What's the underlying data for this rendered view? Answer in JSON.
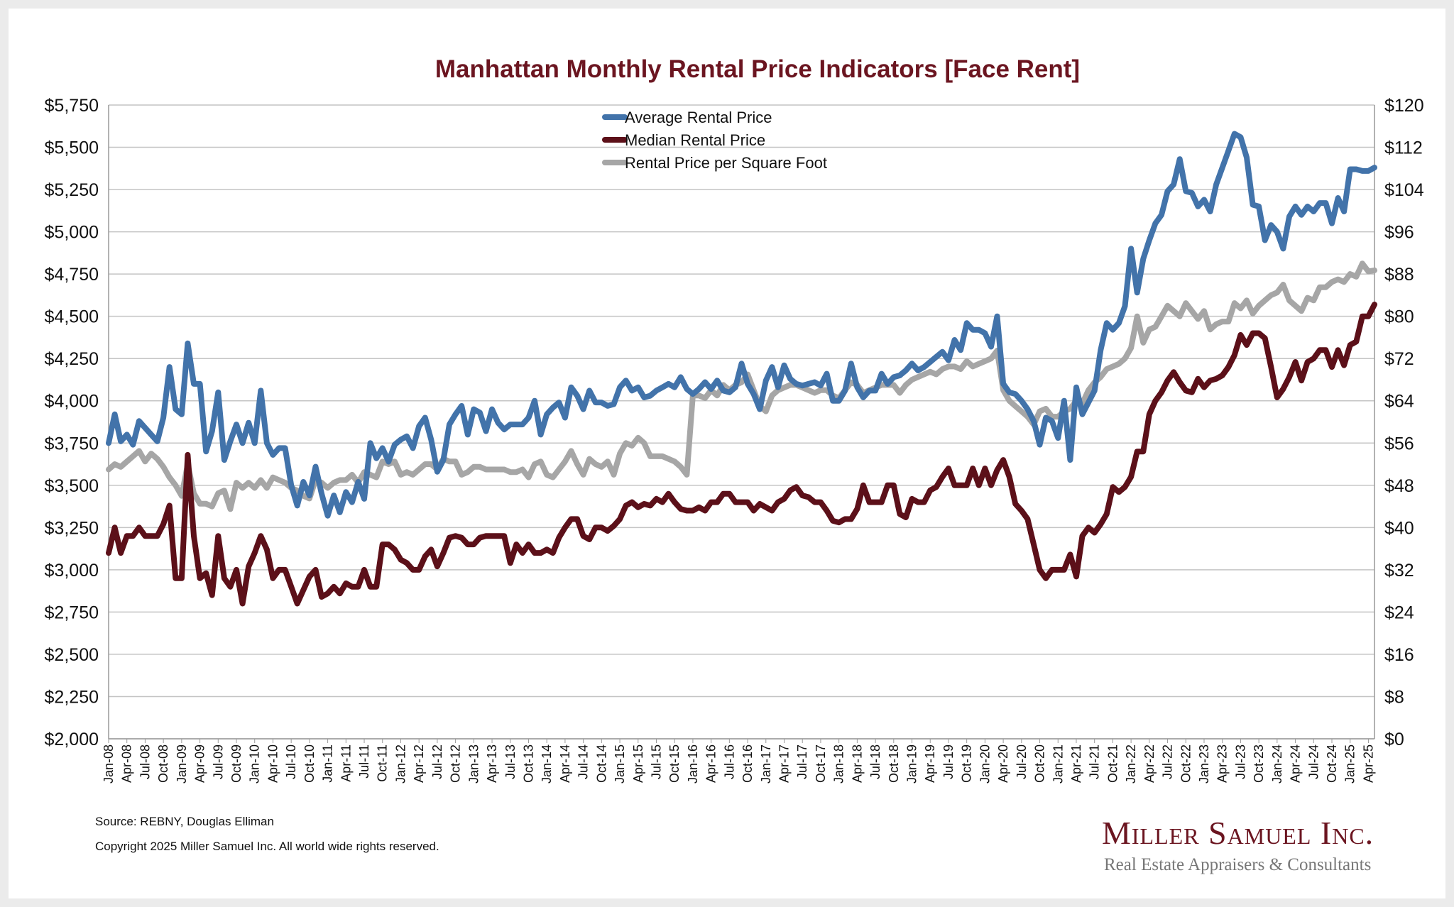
{
  "chart_data": {
    "type": "line",
    "title": "Manhattan Monthly Rental Price Indicators [Face Rent]",
    "x_start": "Jan-08",
    "x_tick_labels": [
      "Jan-08",
      "Apr-08",
      "Jul-08",
      "Oct-08",
      "Jan-09",
      "Apr-09",
      "Jul-09",
      "Oct-09",
      "Jan-10",
      "Apr-10",
      "Jul-10",
      "Oct-10",
      "Jan-11",
      "Apr-11",
      "Jul-11",
      "Oct-11",
      "Jan-12",
      "Apr-12",
      "Jul-12",
      "Oct-12",
      "Jan-13",
      "Apr-13",
      "Jul-13",
      "Oct-13",
      "Jan-14",
      "Apr-14",
      "Jul-14",
      "Oct-14",
      "Jan-15",
      "Apr-15",
      "Jul-15",
      "Oct-15",
      "Jan-16",
      "Apr-16",
      "Jul-16",
      "Oct-16",
      "Jan-17",
      "Apr-17",
      "Jul-17",
      "Oct-17",
      "Jan-18",
      "Apr-18",
      "Jul-18",
      "Oct-18",
      "Jan-19",
      "Apr-19",
      "Jul-19",
      "Oct-19",
      "Jan-20",
      "Apr-20",
      "Jul-20",
      "Oct-20",
      "Jan-21",
      "Apr-21",
      "Jul-21",
      "Oct-21",
      "Jan-22",
      "Apr-22",
      "Jul-22",
      "Oct-22",
      "Jan-23",
      "Apr-23",
      "Jul-23",
      "Oct-23",
      "Jan-24",
      "Apr-24",
      "Jul-24",
      "Oct-24",
      "Jan-25",
      "Apr-25"
    ],
    "y_left": {
      "min": 2000,
      "max": 5750,
      "ticks": [
        "$2,000",
        "$2,250",
        "$2,500",
        "$2,750",
        "$3,000",
        "$3,250",
        "$3,500",
        "$3,750",
        "$4,000",
        "$4,250",
        "$4,500",
        "$4,750",
        "$5,000",
        "$5,250",
        "$5,500",
        "$5,750"
      ]
    },
    "y_right": {
      "min": 0,
      "max": 120,
      "ticks": [
        "$0",
        "$8",
        "$16",
        "$24",
        "$32",
        "$40",
        "$48",
        "$56",
        "$64",
        "$72",
        "$80",
        "$88",
        "$96",
        "$104",
        "$112",
        "$120"
      ]
    },
    "grid": true,
    "legend_position": "top-center",
    "series": [
      {
        "name": "Average Rental Price",
        "axis": "left",
        "color": "#4273aa",
        "values": [
          3750,
          3920,
          3760,
          3800,
          3740,
          3880,
          3840,
          3800,
          3760,
          3900,
          4200,
          3950,
          3920,
          4340,
          4100,
          4100,
          3700,
          3820,
          4050,
          3650,
          3760,
          3860,
          3750,
          3870,
          3750,
          4060,
          3750,
          3680,
          3720,
          3720,
          3500,
          3380,
          3520,
          3440,
          3610,
          3450,
          3320,
          3440,
          3340,
          3460,
          3400,
          3520,
          3420,
          3750,
          3660,
          3720,
          3640,
          3740,
          3770,
          3790,
          3720,
          3850,
          3900,
          3770,
          3580,
          3650,
          3860,
          3920,
          3970,
          3800,
          3950,
          3930,
          3820,
          3950,
          3870,
          3830,
          3860,
          3860,
          3860,
          3900,
          4000,
          3800,
          3920,
          3960,
          3990,
          3900,
          4080,
          4030,
          3950,
          4060,
          3990,
          3990,
          3970,
          3980,
          4080,
          4120,
          4060,
          4080,
          4020,
          4030,
          4060,
          4080,
          4100,
          4080,
          4140,
          4070,
          4040,
          4070,
          4110,
          4070,
          4120,
          4060,
          4050,
          4080,
          4220,
          4100,
          4040,
          3950,
          4120,
          4200,
          4080,
          4210,
          4130,
          4100,
          4090,
          4100,
          4110,
          4090,
          4160,
          4000,
          4000,
          4060,
          4220,
          4080,
          4020,
          4060,
          4060,
          4160,
          4100,
          4140,
          4150,
          4180,
          4220,
          4180,
          4200,
          4230,
          4260,
          4290,
          4240,
          4360,
          4300,
          4460,
          4420,
          4420,
          4400,
          4320,
          4500,
          4100,
          4050,
          4040,
          4000,
          3950,
          3880,
          3740,
          3900,
          3880,
          3780,
          4000,
          3650,
          4080,
          3920,
          3990,
          4060,
          4300,
          4460,
          4420,
          4460,
          4560,
          4900,
          4640,
          4840,
          4950,
          5050,
          5100,
          5240,
          5280,
          5430,
          5240,
          5230,
          5150,
          5190,
          5120,
          5280,
          5380,
          5480,
          5580,
          5560,
          5440,
          5160,
          5150,
          4950,
          5040,
          5000,
          4900,
          5090,
          5150,
          5100,
          5150,
          5120,
          5170,
          5170,
          5050,
          5200,
          5120,
          5370,
          5370,
          5360,
          5360,
          5380
        ]
      },
      {
        "name": "Median Rental Price",
        "axis": "left",
        "color": "#5c1019",
        "values": [
          3100,
          3250,
          3100,
          3200,
          3200,
          3250,
          3200,
          3200,
          3200,
          3270,
          3380,
          2950,
          2950,
          3680,
          3200,
          2950,
          2980,
          2850,
          3200,
          2950,
          2900,
          3000,
          2800,
          3020,
          3100,
          3200,
          3120,
          2950,
          3000,
          3000,
          2900,
          2800,
          2880,
          2960,
          3000,
          2840,
          2860,
          2900,
          2860,
          2920,
          2900,
          2900,
          3000,
          2900,
          2900,
          3150,
          3150,
          3120,
          3060,
          3040,
          3000,
          3000,
          3080,
          3120,
          3020,
          3100,
          3190,
          3200,
          3190,
          3150,
          3150,
          3190,
          3200,
          3200,
          3200,
          3200,
          3040,
          3150,
          3100,
          3150,
          3100,
          3100,
          3120,
          3100,
          3190,
          3250,
          3300,
          3300,
          3200,
          3180,
          3250,
          3250,
          3230,
          3260,
          3300,
          3380,
          3400,
          3370,
          3390,
          3380,
          3420,
          3400,
          3450,
          3400,
          3360,
          3350,
          3350,
          3370,
          3350,
          3400,
          3400,
          3450,
          3450,
          3400,
          3400,
          3400,
          3350,
          3390,
          3370,
          3350,
          3400,
          3420,
          3470,
          3490,
          3440,
          3430,
          3400,
          3400,
          3350,
          3290,
          3280,
          3300,
          3300,
          3360,
          3500,
          3400,
          3400,
          3400,
          3500,
          3500,
          3330,
          3310,
          3420,
          3400,
          3400,
          3470,
          3490,
          3550,
          3600,
          3500,
          3500,
          3500,
          3600,
          3500,
          3600,
          3500,
          3590,
          3650,
          3550,
          3390,
          3350,
          3300,
          3150,
          3000,
          2950,
          3000,
          3000,
          3000,
          3090,
          2960,
          3200,
          3250,
          3220,
          3270,
          3330,
          3490,
          3460,
          3490,
          3550,
          3700,
          3700,
          3920,
          4000,
          4050,
          4120,
          4170,
          4110,
          4060,
          4050,
          4130,
          4080,
          4120,
          4130,
          4150,
          4200,
          4270,
          4390,
          4330,
          4400,
          4400,
          4370,
          4200,
          4020,
          4070,
          4140,
          4230,
          4120,
          4230,
          4250,
          4300,
          4300,
          4200,
          4300,
          4210,
          4330,
          4350,
          4500,
          4500,
          4570
        ]
      },
      {
        "name": "Rental Price per Square Foot",
        "axis": "right",
        "color": "#a6a6a6",
        "values": [
          51,
          52,
          51.5,
          52.5,
          53.5,
          54.5,
          52.5,
          54,
          53,
          51.5,
          49.5,
          48,
          46,
          52,
          46.5,
          44.5,
          44.5,
          44,
          46.5,
          47,
          43.5,
          48.5,
          47.5,
          48.5,
          47.5,
          49,
          47.5,
          49.5,
          49,
          48.5,
          47.5,
          47,
          46,
          45.5,
          49,
          48.5,
          47.5,
          48.5,
          49,
          49,
          50,
          48.5,
          50.5,
          50,
          49.5,
          52.5,
          52,
          52.5,
          50,
          50.5,
          50,
          51,
          52,
          52,
          51,
          53,
          52.5,
          52.5,
          50,
          50.5,
          51.5,
          51.5,
          51,
          51,
          51,
          51,
          50.5,
          50.5,
          51,
          49.5,
          52,
          52.5,
          50,
          49.5,
          51,
          52.5,
          54.5,
          52,
          50,
          53,
          52,
          51.5,
          52.5,
          50,
          54,
          56,
          55.5,
          57,
          56,
          53.5,
          53.5,
          53.5,
          53,
          52.5,
          51.5,
          50,
          65,
          65,
          64.5,
          66,
          65,
          67,
          66,
          67,
          67.5,
          69,
          66,
          63,
          62,
          65,
          66,
          66.5,
          67,
          67,
          66.5,
          66,
          65.5,
          66,
          66,
          65,
          64.5,
          66,
          67.5,
          67,
          65.5,
          66,
          66.5,
          67,
          67,
          67,
          65.5,
          67,
          68,
          68.5,
          69,
          69.5,
          69,
          70,
          70.5,
          70.5,
          70,
          71.5,
          70.5,
          71,
          71.5,
          72,
          73.5,
          66,
          64,
          63,
          62,
          61,
          59.5,
          62,
          62.5,
          61,
          61,
          62,
          62.5,
          64,
          63.5,
          66,
          67.5,
          68.5,
          70,
          70.5,
          71,
          72,
          74,
          80,
          75,
          77.5,
          78,
          80,
          82,
          81,
          80,
          82.5,
          81,
          79.5,
          81,
          77.5,
          78.5,
          79,
          79,
          82.5,
          81.5,
          83,
          80.5,
          82,
          83,
          84,
          84.5,
          86,
          83,
          82,
          81,
          83.5,
          83,
          85.5,
          85.5,
          86.5,
          87,
          86.5,
          88,
          87.5,
          90,
          88.5,
          88.7
        ]
      }
    ]
  },
  "footer": {
    "source": "Source: REBNY, Douglas Elliman",
    "copyright": "Copyright 2025 Miller Samuel Inc.  All world wide rights reserved."
  },
  "logo": {
    "name": "Miller Samuel Inc.",
    "tagline": "Real Estate Appraisers & Consultants"
  }
}
